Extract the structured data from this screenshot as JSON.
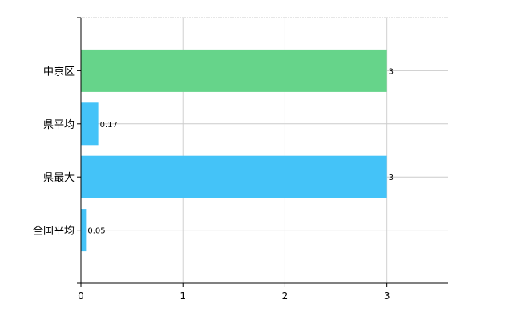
{
  "chart_data": {
    "type": "bar",
    "orientation": "horizontal",
    "categories": [
      "中京区",
      "県平均",
      "県最大",
      "全国平均"
    ],
    "values": [
      3,
      0.17,
      3,
      0.05
    ],
    "data_labels": [
      "3",
      "0.17",
      "3",
      "0.05"
    ],
    "colors": [
      "#66d48a",
      "#44c3f8",
      "#44c3f8",
      "#44c3f8"
    ],
    "xlim": [
      0,
      3.6
    ],
    "x_ticks": [
      0,
      1,
      2,
      3
    ],
    "x_tick_labels": [
      "0",
      "1",
      "2",
      "3"
    ],
    "grid": true,
    "title": "",
    "xlabel": "",
    "ylabel": ""
  }
}
